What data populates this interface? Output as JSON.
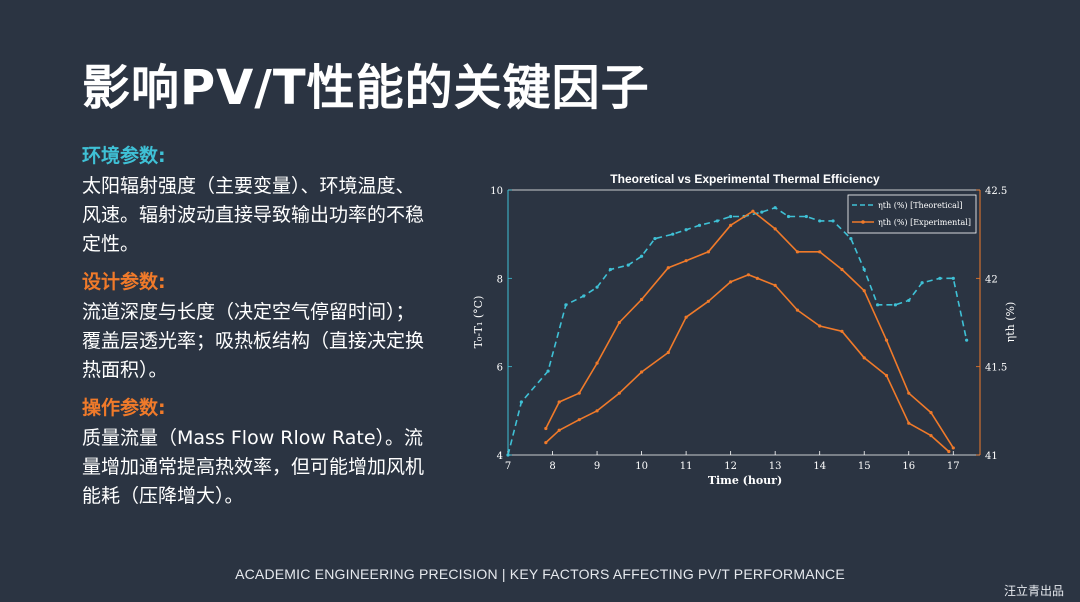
{
  "title": "影响PV/T性能的关键因子",
  "sections": [
    {
      "heading": "环境参数:",
      "color": "#3fc1d6",
      "body": "太阳辐射强度（主要变量）、环境温度、风速。辐射波动直接导致输出功率的不稳定性。"
    },
    {
      "heading": "设计参数:",
      "color": "#f07a2a",
      "body": "流道深度与长度（决定空气停留时间）；覆盖层透光率；吸热板结构（直接决定换热面积）。"
    },
    {
      "heading": "操作参数:",
      "color": "#f07a2a",
      "body": "质量流量（Mass Flow Rlow Rate）。流量增加通常提高热效率，但可能增加风机能耗（压降增大）。"
    }
  ],
  "footer": "ACADEMIC ENGINEERING PRECISION | KEY FACTORS AFFECTING PV/T PERFORMANCE",
  "brand": "汪立青出品",
  "chart_data": {
    "type": "line",
    "title": "Theoretical vs Experimental Thermal Efficiency",
    "xlabel": "Time (hour)",
    "ylabel_left": "T₀-T₁ (°C)",
    "ylabel_right": "ηth (%)",
    "xlim": [
      7,
      17.6
    ],
    "ylim_left": [
      4,
      10
    ],
    "ylim_right": [
      41,
      42.5
    ],
    "xticks": [
      7,
      8,
      9,
      10,
      11,
      12,
      13,
      14,
      15,
      16,
      17
    ],
    "yticks_left": [
      4,
      6,
      8,
      10
    ],
    "yticks_right": [
      41,
      41.5,
      42,
      42.5
    ],
    "legend_position": "top-right",
    "grid": false,
    "colors": {
      "left_axis": "#3fc1d6",
      "right_axis": "#f07a2a",
      "plot_bg": "#2b3442",
      "text": "#ffffff"
    },
    "series": [
      {
        "name": "ηth (%) [Theoretical]",
        "axis": "left",
        "style": "dashed",
        "color": "#3fc1d6",
        "x": [
          7.0,
          7.3,
          7.9,
          8.3,
          8.7,
          9.0,
          9.3,
          9.7,
          10.0,
          10.3,
          10.7,
          11.0,
          11.3,
          11.7,
          12.0,
          12.3,
          12.7,
          13.0,
          13.3,
          13.7,
          14.0,
          14.3,
          14.7,
          15.0,
          15.3,
          15.7,
          16.0,
          16.3,
          16.7,
          17.0,
          17.3
        ],
        "y": [
          4.0,
          5.2,
          5.9,
          7.4,
          7.6,
          7.8,
          8.2,
          8.3,
          8.5,
          8.9,
          9.0,
          9.1,
          9.2,
          9.3,
          9.4,
          9.4,
          9.5,
          9.6,
          9.4,
          9.4,
          9.3,
          9.3,
          8.9,
          8.2,
          7.4,
          7.4,
          7.5,
          7.9,
          8.0,
          8.0,
          6.6
        ]
      },
      {
        "name": "ηth (%) [Experimental]",
        "axis": "right",
        "style": "solid",
        "marker": "circle",
        "color": "#f07a2a",
        "x": [
          7.85,
          8.15,
          8.6,
          9.0,
          9.5,
          10.0,
          10.6,
          11.0,
          11.5,
          12.0,
          12.4,
          12.6,
          13.0,
          13.5,
          14.0,
          14.5,
          15.0,
          15.5,
          16.0,
          16.5,
          16.9
        ],
        "y": [
          41.07,
          41.14,
          41.2,
          41.25,
          41.35,
          41.47,
          41.58,
          41.78,
          41.87,
          41.98,
          42.02,
          42.0,
          41.96,
          41.82,
          41.73,
          41.7,
          41.55,
          41.45,
          41.18,
          41.11,
          41.02
        ]
      },
      {
        "style": "solid",
        "axis": "right",
        "color": "#f07a2a",
        "x": [
          7.85,
          8.15,
          8.6,
          9.0,
          9.5,
          10.0,
          10.6,
          11.0,
          11.5,
          12.0,
          12.5,
          13.0,
          13.5,
          14.0,
          14.5,
          15.0,
          15.5,
          16.0,
          16.5,
          17.0
        ],
        "y": [
          41.15,
          41.3,
          41.35,
          41.52,
          41.75,
          41.88,
          42.06,
          42.1,
          42.15,
          42.3,
          42.38,
          42.28,
          42.15,
          42.15,
          42.05,
          41.93,
          41.65,
          41.35,
          41.24,
          41.04
        ]
      }
    ]
  }
}
